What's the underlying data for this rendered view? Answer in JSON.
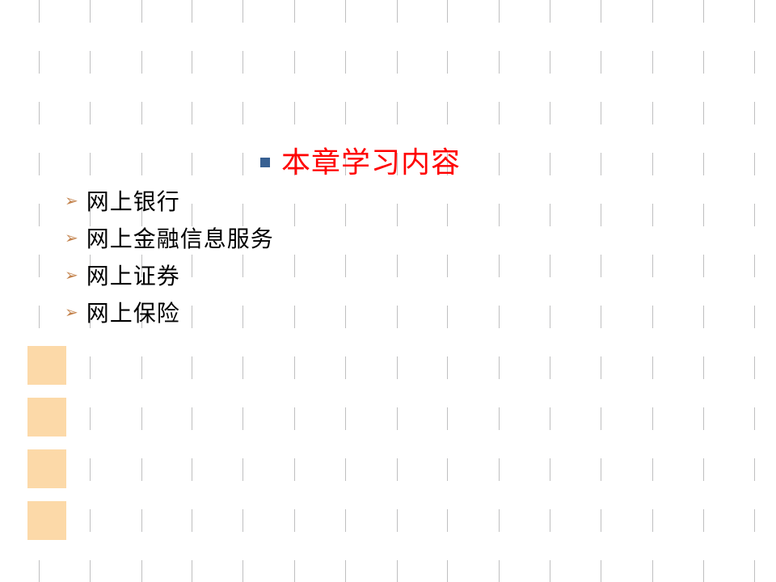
{
  "background": {
    "vline_color": "#bfbfc0",
    "vline_positions": [
      48,
      111,
      175,
      237,
      300,
      364,
      427,
      491,
      553,
      617,
      680,
      743,
      807,
      870,
      933
    ],
    "dash_on": 28,
    "dash_gap": 35
  },
  "decorative_squares": {
    "color": "#fcd9a8",
    "count": 4
  },
  "title": {
    "bullet_color": "#376092",
    "text": "本章学习内容",
    "text_color": "#ff0000",
    "font_size": 36
  },
  "list": {
    "bullet_color": "#c3824c",
    "text_color": "#000000",
    "font_size": 28,
    "items": [
      {
        "label": "网上银行"
      },
      {
        "label": "网上金融信息服务"
      },
      {
        "label": "网上证券"
      },
      {
        "label": "网上保险"
      }
    ]
  }
}
